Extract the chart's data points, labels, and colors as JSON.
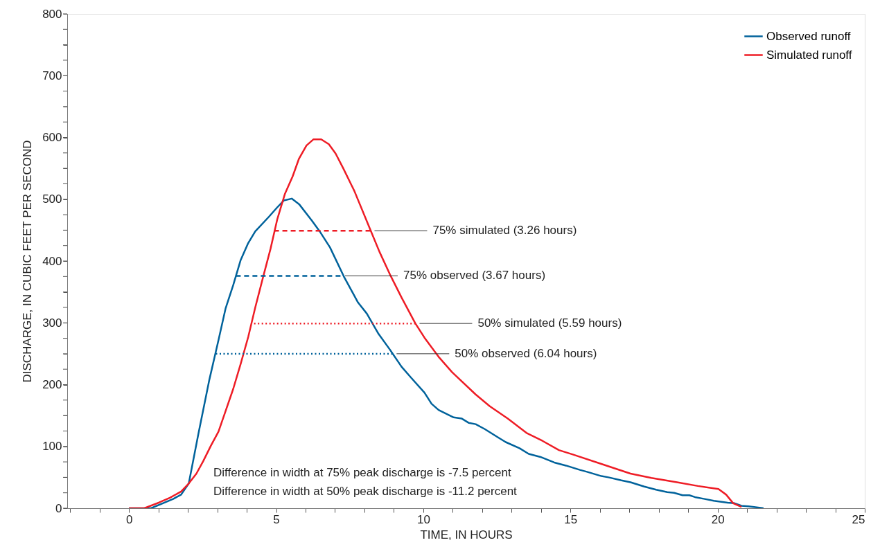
{
  "chart_data": {
    "type": "line",
    "xlabel": "TIME, IN HOURS",
    "ylabel": "DISCHARGE, IN CUBIC FEET PER SECOND",
    "xlim": [
      -2.1,
      25
    ],
    "ylim": [
      0,
      800
    ],
    "xticks": [
      {
        "value": -2,
        "label": null
      },
      {
        "value": -1,
        "label": null
      },
      0,
      {
        "value": 1,
        "label": null
      },
      {
        "value": 2,
        "label": null
      },
      {
        "value": 3,
        "label": null
      },
      {
        "value": 4,
        "label": null
      },
      5,
      {
        "value": 6,
        "label": null
      },
      {
        "value": 7,
        "label": null
      },
      {
        "value": 8,
        "label": null
      },
      {
        "value": 9,
        "label": null
      },
      10,
      {
        "value": 11,
        "label": null
      },
      {
        "value": 12,
        "label": null
      },
      {
        "value": 13,
        "label": null
      },
      {
        "value": 14,
        "label": null
      },
      15,
      {
        "value": 16,
        "label": null
      },
      {
        "value": 17,
        "label": null
      },
      {
        "value": 18,
        "label": null
      },
      {
        "value": 19,
        "label": null
      },
      20,
      {
        "value": 21,
        "label": null
      },
      {
        "value": 22,
        "label": null
      },
      {
        "value": 23,
        "label": null
      },
      {
        "value": 24,
        "label": null
      },
      25
    ],
    "yticks": [
      0,
      {
        "value": 25,
        "label": null
      },
      {
        "value": 50,
        "label": null
      },
      {
        "value": 75,
        "label": null
      },
      100,
      {
        "value": 125,
        "label": null
      },
      {
        "value": 150,
        "label": null
      },
      {
        "value": 175,
        "label": null
      },
      200,
      {
        "value": 225,
        "label": null
      },
      {
        "value": 250,
        "label": null
      },
      {
        "value": 275,
        "label": null
      },
      300,
      {
        "value": 325,
        "label": null
      },
      {
        "value": 350,
        "label": null
      },
      {
        "value": 375,
        "label": null
      },
      400,
      {
        "value": 425,
        "label": null
      },
      {
        "value": 450,
        "label": null
      },
      {
        "value": 475,
        "label": null
      },
      500,
      {
        "value": 525,
        "label": null
      },
      {
        "value": 550,
        "label": null
      },
      {
        "value": 575,
        "label": null
      },
      600,
      {
        "value": 625,
        "label": null
      },
      {
        "value": 650,
        "label": null
      },
      {
        "value": 675,
        "label": null
      },
      700,
      {
        "value": 725,
        "label": null
      },
      {
        "value": 750,
        "label": null
      },
      {
        "value": 775,
        "label": null
      },
      800
    ],
    "grid": false,
    "legend": "top right",
    "line_style": "solid",
    "marker": "none",
    "series": [
      {
        "name": "Observed runoff",
        "color": "#00629b",
        "x": [
          0,
          0.75,
          1.5,
          1.77,
          2.03,
          2.36,
          2.73,
          3.04,
          3.28,
          3.54,
          3.79,
          4.05,
          4.29,
          4.76,
          5.02,
          5.26,
          5.53,
          5.78,
          6.22,
          6.48,
          6.83,
          7.3,
          7.78,
          8.08,
          8.48,
          8.86,
          9.26,
          9.57,
          10.04,
          10.28,
          10.52,
          11.03,
          11.31,
          11.55,
          11.78,
          12.09,
          12.56,
          12.8,
          13.27,
          13.58,
          13.98,
          14.45,
          14.85,
          15.32,
          15.56,
          16.05,
          16.29,
          16.73,
          17.04,
          17.51,
          17.91,
          18.29,
          18.52,
          18.81,
          19.04,
          19.23,
          19.56,
          19.87,
          20.34,
          20.58,
          20.81,
          21.05,
          21.56
        ],
        "values": [
          0,
          0,
          15,
          22,
          40,
          121,
          208,
          272,
          323,
          361,
          401,
          429,
          448,
          472,
          486,
          498,
          501,
          492,
          465,
          448,
          422,
          375,
          333,
          315,
          282,
          257,
          229,
          212,
          187,
          169,
          159,
          147,
          145,
          138,
          136,
          128,
          114,
          107,
          97,
          88,
          83,
          74,
          69,
          62,
          59,
          52,
          50,
          45,
          42,
          35,
          30,
          26,
          25,
          21,
          21,
          18,
          15,
          12,
          9,
          8,
          4,
          3,
          0
        ]
      },
      {
        "name": "Simulated runoff",
        "color": "#ee1c25",
        "x": [
          0,
          0.52,
          1.01,
          1.39,
          1.77,
          2.03,
          2.29,
          2.52,
          2.78,
          3.04,
          3.28,
          3.54,
          3.79,
          4.05,
          4.29,
          4.55,
          4.81,
          5.04,
          5.3,
          5.56,
          5.77,
          6.03,
          6.27,
          6.53,
          6.79,
          7.02,
          7.28,
          7.66,
          8.18,
          8.51,
          8.89,
          9.26,
          9.73,
          10.04,
          10.52,
          10.98,
          11.78,
          12.26,
          12.87,
          13.5,
          14.05,
          14.61,
          15.08,
          16.03,
          17.04,
          17.75,
          18.62,
          19.33,
          20.03,
          20.29,
          20.53,
          20.81
        ],
        "values": [
          0,
          0,
          9,
          17,
          27,
          40,
          56,
          76,
          101,
          124,
          157,
          193,
          233,
          277,
          325,
          373,
          420,
          468,
          509,
          537,
          565,
          587,
          597,
          597,
          589,
          574,
          550,
          513,
          453,
          415,
          376,
          341,
          299,
          276,
          245,
          220,
          184,
          165,
          145,
          122,
          109,
          94,
          87,
          72,
          56,
          49,
          42,
          36,
          31,
          22,
          8,
          2
        ]
      },
      {
        "color": "#ee1c25",
        "line_style": "dashed",
        "x": [
          4.93,
          8.2
        ],
        "values": [
          449,
          449
        ]
      },
      {
        "color": "#00629b",
        "line_style": "dashed",
        "x": [
          3.63,
          7.2
        ],
        "values": [
          376,
          376
        ]
      },
      {
        "color": "#ee1c25",
        "line_style": "dotted",
        "x": [
          4.25,
          9.73
        ],
        "values": [
          299,
          299
        ]
      },
      {
        "color": "#00629b",
        "line_style": "dotted",
        "x": [
          2.95,
          8.95
        ],
        "values": [
          250,
          250
        ]
      }
    ],
    "annotations": [
      {
        "text": "75% simulated (3.26 hours)",
        "x": 8.2,
        "y": 449
      },
      {
        "text": "75% observed (3.67 hours)",
        "x": 7.2,
        "y": 376
      },
      {
        "text": "50% simulated (5.59 hours)",
        "x": 9.73,
        "y": 299
      },
      {
        "text": "50% observed (6.04 hours)",
        "x": 8.95,
        "y": 250
      },
      "Difference in width at 75% peak discharge is -7.5 percent",
      "Difference in width at 50% peak discharge is -11.2 percent"
    ]
  }
}
